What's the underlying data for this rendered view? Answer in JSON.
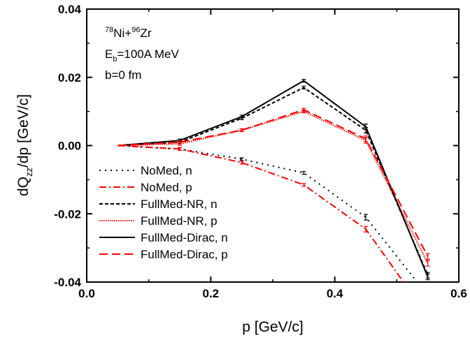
{
  "chart_data": {
    "type": "line",
    "xlabel": "p [GeV/c]",
    "ylabel": {
      "main": "dQ",
      "sub": "zz",
      "rest": "/dp [GeV/c]"
    },
    "xlim": [
      0.0,
      0.6
    ],
    "ylim": [
      -0.04,
      0.04
    ],
    "x_ticks": [
      0.0,
      0.2,
      0.4,
      0.6
    ],
    "x_tick_labels": [
      "0.0",
      "0.2",
      "0.4",
      "0.6"
    ],
    "y_ticks": [
      -0.04,
      -0.02,
      0.0,
      0.02,
      0.04
    ],
    "y_tick_labels": [
      "-0.04",
      "-0.02",
      "0.00",
      "0.02",
      "0.04"
    ],
    "grid": false,
    "legend_position": "lower-left",
    "annotations": {
      "reaction": {
        "sup1": "78",
        "t1": "Ni+",
        "sup2": "96",
        "t2": "Zr"
      },
      "energy": {
        "t1": "E",
        "sub": "b",
        "t2": "=100A MeV"
      },
      "impact": "b=0 fm"
    },
    "series": [
      {
        "name": "NoMed, n",
        "color": "#000000",
        "dash": "dot",
        "x": [
          0.05,
          0.15,
          0.25,
          0.35,
          0.45,
          0.55
        ],
        "y": [
          0.0,
          -0.001,
          -0.004,
          -0.008,
          -0.021,
          -0.044
        ]
      },
      {
        "name": "NoMed, p",
        "color": "#ff0000",
        "dash": "dashdot",
        "x": [
          0.05,
          0.15,
          0.25,
          0.35,
          0.45,
          0.55
        ],
        "y": [
          0.0,
          -0.001,
          -0.005,
          -0.0115,
          -0.0245,
          -0.05
        ]
      },
      {
        "name": "FullMed-NR, n",
        "color": "#000000",
        "dash": "shortdash",
        "x": [
          0.05,
          0.15,
          0.25,
          0.35,
          0.45,
          0.55
        ],
        "y": [
          0.0,
          0.001,
          0.008,
          0.017,
          0.0045,
          -0.038
        ]
      },
      {
        "name": "FullMed-NR, p",
        "color": "#ff0000",
        "dash": "fineDot",
        "x": [
          0.05,
          0.15,
          0.25,
          0.35,
          0.45,
          0.55
        ],
        "y": [
          0.0,
          0.0005,
          0.0045,
          0.01,
          0.0015,
          -0.0345
        ]
      },
      {
        "name": "FullMed-Dirac, n",
        "color": "#000000",
        "dash": "solid",
        "x": [
          0.05,
          0.15,
          0.25,
          0.35,
          0.45,
          0.55
        ],
        "y": [
          0.0,
          0.0015,
          0.0085,
          0.019,
          0.0055,
          -0.0385
        ]
      },
      {
        "name": "FullMed-Dirac, p",
        "color": "#ff0000",
        "dash": "longdash",
        "x": [
          0.05,
          0.15,
          0.25,
          0.35,
          0.45,
          0.55
        ],
        "y": [
          0.0,
          0.001,
          0.0045,
          0.0105,
          0.002,
          -0.0325
        ]
      }
    ]
  }
}
